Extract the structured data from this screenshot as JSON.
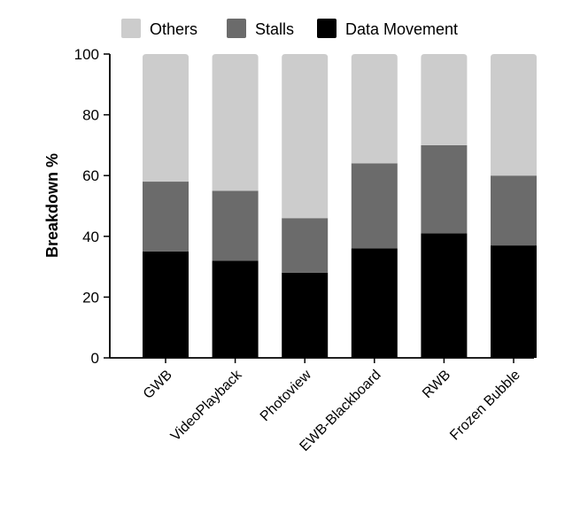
{
  "chart_data": {
    "type": "bar",
    "stacked": true,
    "categories": [
      "GWB",
      "VideoPlayback",
      "Photoview",
      "EWB-Blackboard",
      "RWB",
      "Frozen Bubble"
    ],
    "series": [
      {
        "name": "Data Movement",
        "color": "#000000",
        "values": [
          35,
          32,
          28,
          36,
          41,
          37
        ]
      },
      {
        "name": "Stalls",
        "color": "#6b6b6b",
        "values": [
          23,
          23,
          18,
          28,
          29,
          23
        ]
      },
      {
        "name": "Others",
        "color": "#cccccc",
        "values": [
          42,
          45,
          54,
          36,
          30,
          40
        ]
      }
    ],
    "legend_order": [
      "Others",
      "Stalls",
      "Data Movement"
    ],
    "xlabel": "",
    "ylabel": "Breakdown %",
    "ylim": [
      0,
      100
    ],
    "yticks": [
      0,
      20,
      40,
      60,
      80,
      100
    ],
    "grid": false,
    "legend_position": "top"
  }
}
